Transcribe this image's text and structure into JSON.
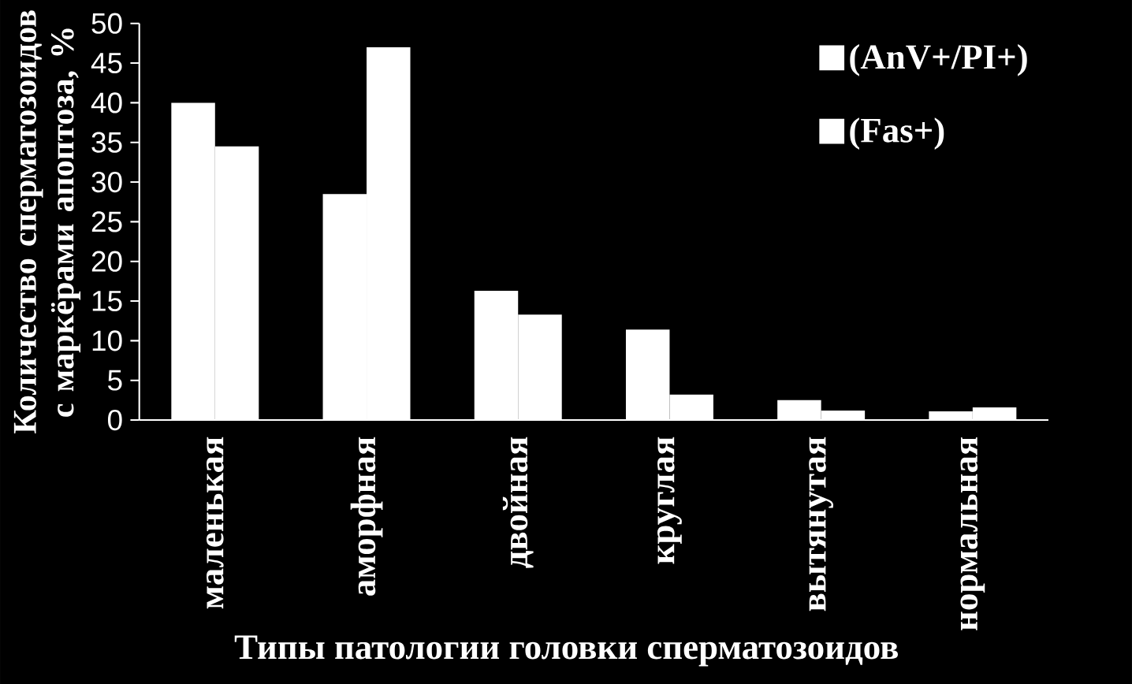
{
  "chart_data": {
    "type": "bar",
    "xlabel": "Типы патологии головки сперматозоидов",
    "ylabel": "Количество сперматозоидов с маркёрами апоптоза, %",
    "categories": [
      "маленькая",
      "аморфная",
      "двойная",
      "круглая",
      "вытянутая",
      "нормальная"
    ],
    "series": [
      {
        "name": "(AnV+/PI+)",
        "color": "#ffffff",
        "values": [
          40,
          28.5,
          16.3,
          11.4,
          2.5,
          1.1
        ]
      },
      {
        "name": "(Fas+)",
        "color": "#ffffff",
        "values": [
          34.5,
          47,
          13.3,
          3.2,
          1.2,
          1.6
        ]
      }
    ],
    "ylim": [
      0,
      50
    ],
    "yticks": [
      0,
      5,
      10,
      15,
      20,
      25,
      30,
      35,
      40,
      45,
      50
    ],
    "legend": "top right",
    "grid": false
  }
}
